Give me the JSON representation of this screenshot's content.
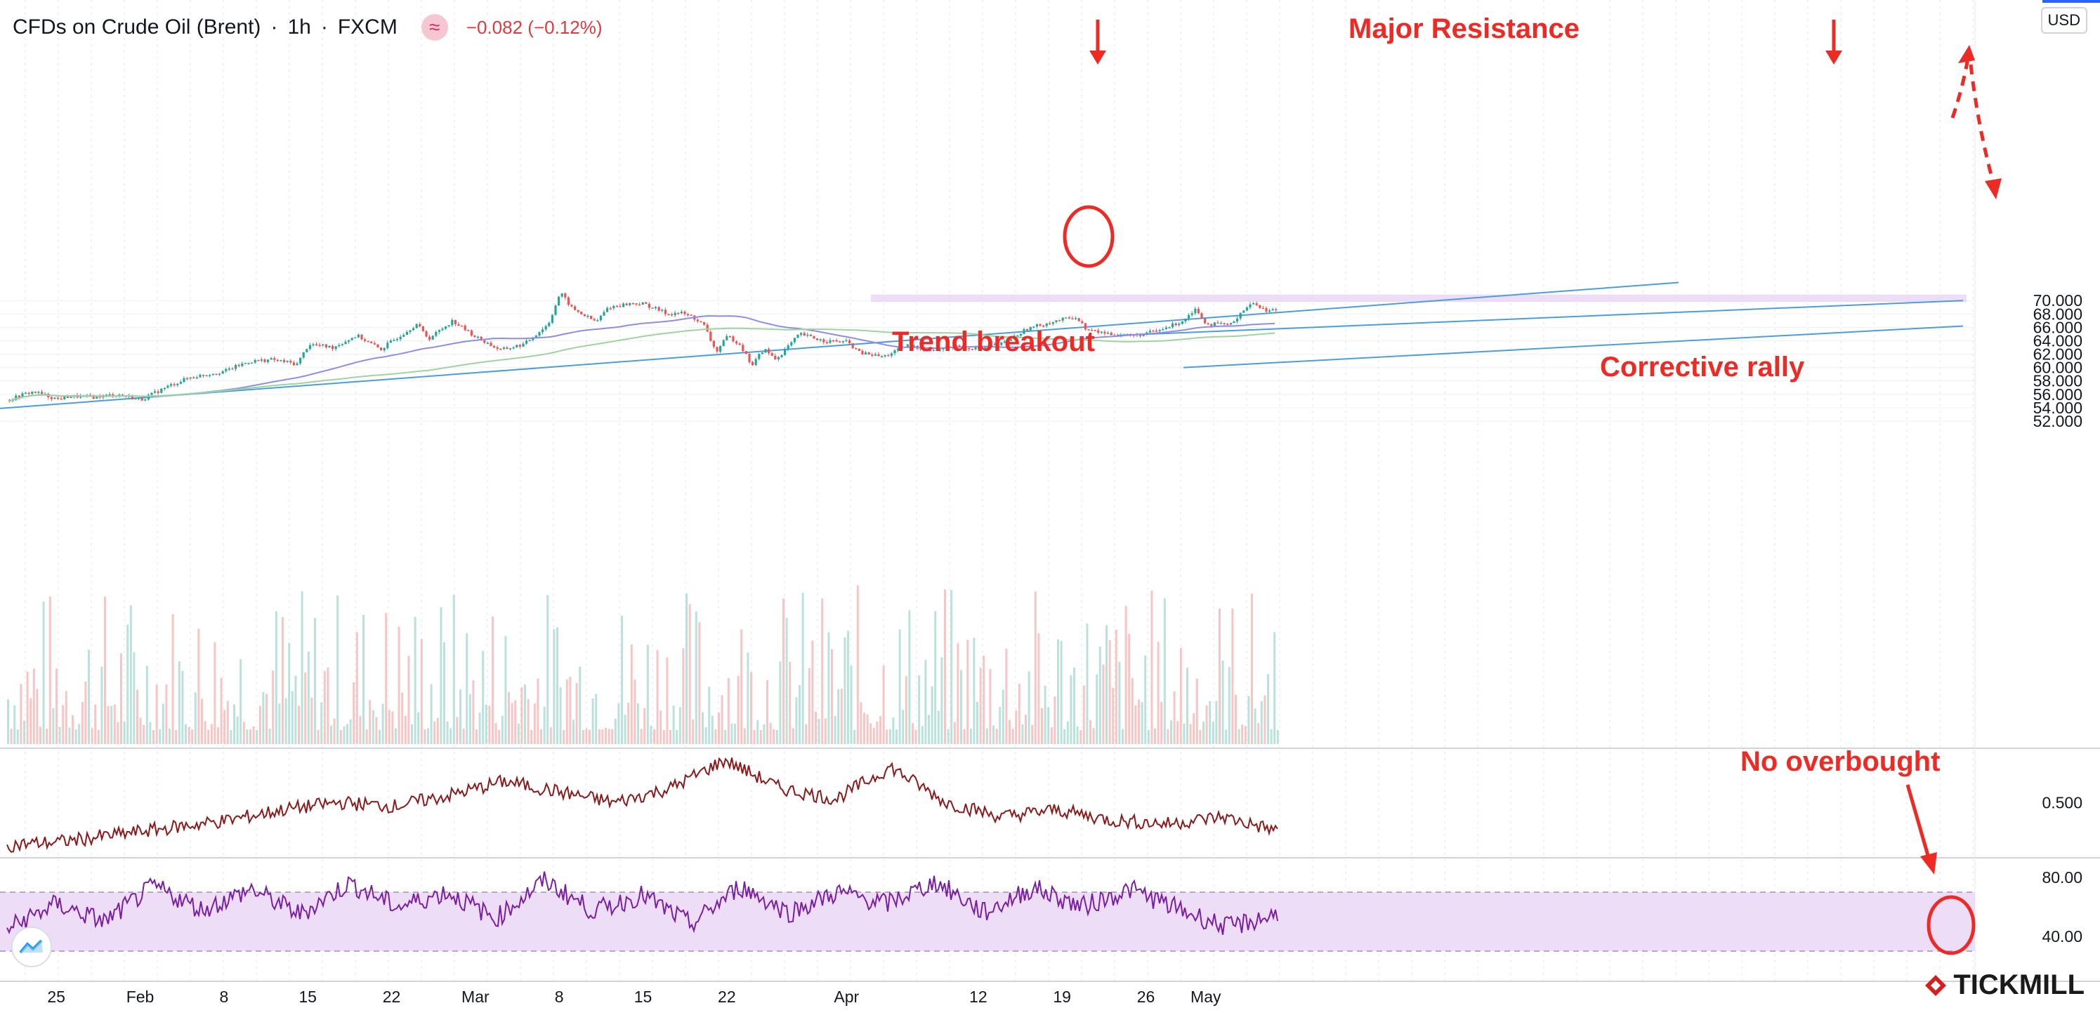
{
  "header": {
    "symbol": "CFDs on Crude Oil (Brent)",
    "interval": "1h",
    "exchange": "FXCM",
    "badge_icon": "≈",
    "change": "−0.082 (−0.12%)"
  },
  "currency_label": "USD",
  "brand": "TICKMILL",
  "colors": {
    "up": "#26a69a",
    "down": "#ef5350",
    "trendline": "#4a9ee0",
    "ma_fast": "#8d8de8",
    "ma_slow": "#9fd39f",
    "oscillator": "#8b1a1a",
    "rsi": "#7b1fa2",
    "annotation": "#ee2a24",
    "zone": "#e8d2f4"
  },
  "chart_data": [
    {
      "type": "candlestick",
      "title": "CFDs on Crude Oil (Brent) · 1h · FXCM",
      "x_tick_labels": [
        "25",
        "Feb",
        "8",
        "15",
        "22",
        "Mar",
        "8",
        "15",
        "22",
        "Apr",
        "12",
        "19",
        "26",
        "May"
      ],
      "y_tick_labels": [
        "52.000",
        "54.000",
        "56.000",
        "58.000",
        "60.000",
        "62.000",
        "64.000",
        "66.000",
        "68.000",
        "70.000"
      ],
      "ylim": [
        50.8,
        72.8
      ],
      "grid": true,
      "price_path": [
        [
          "Jan 21",
          55.2
        ],
        [
          "Jan 22",
          55.9
        ],
        [
          "Jan 23",
          56.4
        ],
        [
          "Jan 25",
          55.3
        ],
        [
          "Jan 26",
          55.7
        ],
        [
          "Jan 28",
          55.6
        ],
        [
          "Jan 30",
          56.0
        ],
        [
          "Feb 1",
          55.2
        ],
        [
          "Feb 3",
          57.0
        ],
        [
          "Feb 5",
          58.5
        ],
        [
          "Feb 8",
          59.5
        ],
        [
          "Feb 10",
          60.9
        ],
        [
          "Feb 12",
          61.2
        ],
        [
          "Feb 14",
          60.5
        ],
        [
          "Feb 15",
          63.5
        ],
        [
          "Feb 17",
          63.0
        ],
        [
          "Feb 19",
          64.8
        ],
        [
          "Feb 21",
          62.7
        ],
        [
          "Feb 22",
          64.0
        ],
        [
          "Feb 24",
          66.5
        ],
        [
          "Feb 25",
          64.3
        ],
        [
          "Feb 27",
          67.0
        ],
        [
          "Mar 1",
          64.5
        ],
        [
          "Mar 3",
          62.6
        ],
        [
          "Mar 5",
          63.5
        ],
        [
          "Mar 7",
          66.5
        ],
        [
          "Mar 8",
          71.2
        ],
        [
          "Mar 9",
          68.8
        ],
        [
          "Mar 11",
          66.8
        ],
        [
          "Mar 12",
          69.0
        ],
        [
          "Mar 14",
          69.6
        ],
        [
          "Mar 15",
          69.5
        ],
        [
          "Mar 17",
          68.0
        ],
        [
          "Mar 18",
          68.2
        ],
        [
          "Mar 19",
          67.6
        ],
        [
          "Mar 20",
          66.3
        ],
        [
          "Mar 21",
          62.3
        ],
        [
          "Mar 22",
          64.7
        ],
        [
          "Mar 23",
          63.5
        ],
        [
          "Mar 24",
          60.3
        ],
        [
          "Mar 25",
          62.8
        ],
        [
          "Mar 26",
          61.2
        ],
        [
          "Mar 28",
          65.0
        ],
        [
          "Mar 30",
          64.0
        ],
        [
          "Apr 1",
          63.8
        ],
        [
          "Apr 2",
          62.2
        ],
        [
          "Apr 4",
          61.6
        ],
        [
          "Apr 6",
          63.3
        ],
        [
          "Apr 8",
          62.5
        ],
        [
          "Apr 10",
          63.2
        ],
        [
          "Apr 12",
          62.8
        ],
        [
          "Apr 14",
          63.6
        ],
        [
          "Apr 16",
          65.8
        ],
        [
          "Apr 18",
          66.8
        ],
        [
          "Apr 20",
          67.6
        ],
        [
          "Apr 21",
          65.6
        ],
        [
          "Apr 23",
          65.0
        ],
        [
          "Apr 25",
          64.8
        ],
        [
          "Apr 27",
          65.5
        ],
        [
          "Apr 29",
          67.0
        ],
        [
          "Apr 30",
          68.8
        ],
        [
          "May 1",
          66.5
        ],
        [
          "May 3",
          66.4
        ],
        [
          "May 4",
          68.6
        ],
        [
          "May 5",
          69.7
        ],
        [
          "May 6",
          68.4
        ],
        [
          "May 7",
          68.8
        ]
      ],
      "overlays": [
        "moving average (blue)",
        "moving average (green)"
      ],
      "annotations": [
        "Major Resistance",
        "Trend breakout",
        "Corrective rally",
        "No overbought"
      ],
      "resistance_zone": [
        69.8,
        70.9
      ]
    },
    {
      "type": "line",
      "title": "",
      "y_tick_labels": [
        "0.500"
      ],
      "series": [
        {
          "values": [
            0.38,
            0.39,
            0.41,
            0.43,
            0.45,
            0.48,
            0.5,
            0.49,
            0.52,
            0.56,
            0.53,
            0.5,
            0.54,
            0.62,
            0.54,
            0.51,
            0.6,
            0.5,
            0.46,
            0.48,
            0.45,
            0.44,
            0.46,
            0.42
          ]
        }
      ]
    },
    {
      "type": "line",
      "title": "",
      "y_tick_labels": [
        "80.00",
        "40.00"
      ],
      "ylim": [
        30,
        90
      ],
      "band": [
        30,
        70
      ],
      "series": [
        {
          "values": [
            45,
            62,
            50,
            74,
            58,
            72,
            55,
            76,
            60,
            70,
            52,
            78,
            57,
            68,
            48,
            74,
            56,
            70,
            62,
            77,
            56,
            73,
            60,
            72,
            58,
            46,
            55
          ]
        }
      ]
    }
  ]
}
